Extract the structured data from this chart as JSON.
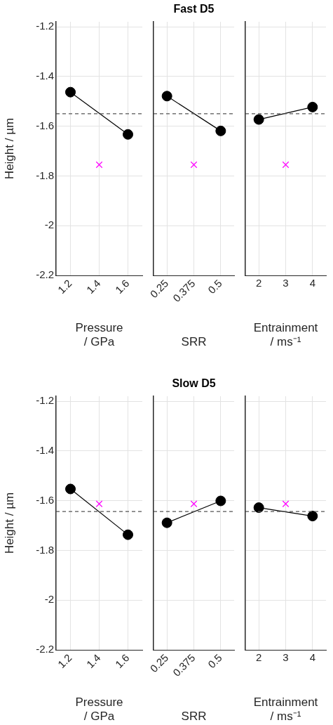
{
  "chart_data": [
    {
      "type": "line",
      "ylabel": "Height / µm",
      "xlabel": "Pressure / GPa",
      "x": [
        1.2,
        1.6
      ],
      "xlim": [
        1.1,
        1.7
      ],
      "xticks": [
        1.2,
        1.4,
        1.6
      ],
      "ylim": [
        -2.2,
        -1.18
      ],
      "yticks": [
        -2.2,
        -2,
        -1.8,
        -1.6,
        -1.4,
        -1.2
      ],
      "grid": true,
      "marker": "circle",
      "line_style": "solid",
      "series": [
        {
          "color": "#000000",
          "values": [
            -1.463,
            -1.633
          ]
        },
        {
          "type": "scatter",
          "marker": "cross",
          "color": "#ff00ff",
          "x": [
            1.4
          ],
          "values": [
            -1.755
          ]
        }
      ],
      "ref_lines": [
        {
          "axis": "y",
          "value": -1.55,
          "color": "#555555",
          "line_style": "dashed"
        }
      ]
    },
    {
      "type": "line",
      "title": "Fast D5",
      "xlabel": "SRR",
      "x": [
        0.25,
        0.5
      ],
      "xlim": [
        0.1875,
        0.5625
      ],
      "xticks": [
        0.25,
        0.375,
        0.5
      ],
      "ylim": [
        -2.2,
        -1.18
      ],
      "yticks": [
        -2.2,
        -2,
        -1.8,
        -1.6,
        -1.4,
        -1.2
      ],
      "grid": true,
      "marker": "circle",
      "line_style": "solid",
      "tick_labels": "x",
      "series": [
        {
          "color": "#000000",
          "values": [
            -1.479,
            -1.619
          ]
        },
        {
          "type": "scatter",
          "marker": "cross",
          "color": "#ff00ff",
          "x": [
            0.375
          ],
          "values": [
            -1.755
          ]
        }
      ],
      "ref_lines": [
        {
          "axis": "y",
          "value": -1.55,
          "color": "#555555",
          "line_style": "dashed"
        }
      ]
    },
    {
      "type": "line",
      "xlabel": "Entrainment / ms⁻¹",
      "x": [
        2,
        4
      ],
      "xlim": [
        1.5,
        4.5
      ],
      "xticks": [
        2,
        3,
        4
      ],
      "ylim": [
        -2.2,
        -1.18
      ],
      "yticks": [
        -2.2,
        -2,
        -1.8,
        -1.6,
        -1.4,
        -1.2
      ],
      "grid": true,
      "marker": "circle",
      "line_style": "solid",
      "tick_labels": "x",
      "series": [
        {
          "color": "#000000",
          "values": [
            -1.573,
            -1.523
          ]
        },
        {
          "type": "scatter",
          "marker": "cross",
          "color": "#ff00ff",
          "x": [
            3
          ],
          "values": [
            -1.755
          ]
        }
      ],
      "ref_lines": [
        {
          "axis": "y",
          "value": -1.55,
          "color": "#555555",
          "line_style": "dashed"
        }
      ]
    },
    {
      "type": "line",
      "ylabel": "Height / µm",
      "xlabel": "Pressure / GPa",
      "x": [
        1.2,
        1.6
      ],
      "xlim": [
        1.1,
        1.7
      ],
      "xticks": [
        1.2,
        1.4,
        1.6
      ],
      "ylim": [
        -2.2,
        -1.18
      ],
      "yticks": [
        -2.2,
        -2,
        -1.8,
        -1.6,
        -1.4,
        -1.2
      ],
      "grid": true,
      "marker": "circle",
      "line_style": "solid",
      "series": [
        {
          "color": "#000000",
          "values": [
            -1.553,
            -1.737
          ]
        },
        {
          "type": "scatter",
          "marker": "cross",
          "color": "#ff00ff",
          "x": [
            1.4
          ],
          "values": [
            -1.613
          ]
        }
      ],
      "ref_lines": [
        {
          "axis": "y",
          "value": -1.644,
          "color": "#555555",
          "line_style": "dashed"
        }
      ]
    },
    {
      "type": "line",
      "title": "Slow D5",
      "xlabel": "SRR",
      "x": [
        0.25,
        0.5
      ],
      "xlim": [
        0.1875,
        0.5625
      ],
      "xticks": [
        0.25,
        0.375,
        0.5
      ],
      "ylim": [
        -2.2,
        -1.18
      ],
      "yticks": [
        -2.2,
        -2,
        -1.8,
        -1.6,
        -1.4,
        -1.2
      ],
      "grid": true,
      "marker": "circle",
      "line_style": "solid",
      "tick_labels": "x",
      "series": [
        {
          "color": "#000000",
          "values": [
            -1.689,
            -1.601
          ]
        },
        {
          "type": "scatter",
          "marker": "cross",
          "color": "#ff00ff",
          "x": [
            0.375
          ],
          "values": [
            -1.613
          ]
        }
      ],
      "ref_lines": [
        {
          "axis": "y",
          "value": -1.644,
          "color": "#555555",
          "line_style": "dashed"
        }
      ]
    },
    {
      "type": "line",
      "xlabel": "Entrainment / ms⁻¹",
      "x": [
        2,
        4
      ],
      "xlim": [
        1.5,
        4.5
      ],
      "xticks": [
        2,
        3,
        4
      ],
      "ylim": [
        -2.2,
        -1.18
      ],
      "yticks": [
        -2.2,
        -2,
        -1.8,
        -1.6,
        -1.4,
        -1.2
      ],
      "grid": true,
      "marker": "circle",
      "line_style": "solid",
      "tick_labels": "x",
      "series": [
        {
          "color": "#000000",
          "values": [
            -1.628,
            -1.662
          ]
        },
        {
          "type": "scatter",
          "marker": "cross",
          "color": "#ff00ff",
          "x": [
            3
          ],
          "values": [
            -1.613
          ]
        }
      ],
      "ref_lines": [
        {
          "axis": "y",
          "value": -1.644,
          "color": "#555555",
          "line_style": "dashed"
        }
      ]
    }
  ]
}
